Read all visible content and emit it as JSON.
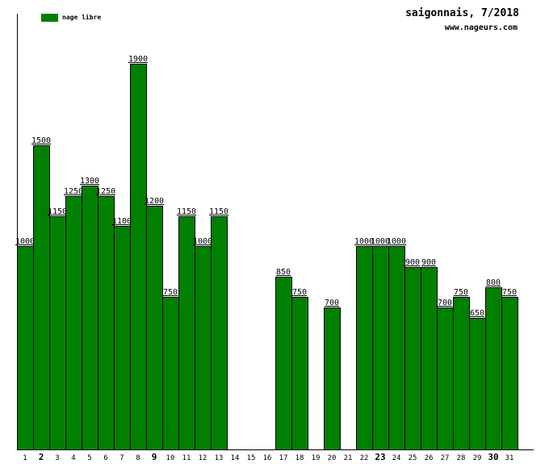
{
  "chart_data": {
    "type": "bar",
    "title": "saigonnais, 7/2018",
    "subtitle": "www.nageurs.com",
    "xlabel": "",
    "ylabel": "",
    "legend": {
      "label": "nage libre",
      "position": "top-left"
    },
    "bar_color": "#008000",
    "grid": false,
    "ylim": [
      0,
      2150
    ],
    "categories": [
      1,
      2,
      3,
      4,
      5,
      6,
      7,
      8,
      9,
      10,
      11,
      12,
      13,
      14,
      15,
      16,
      17,
      18,
      19,
      20,
      21,
      22,
      23,
      24,
      25,
      26,
      27,
      28,
      29,
      30,
      31
    ],
    "values": [
      1000,
      1500,
      1150,
      1250,
      1300,
      1250,
      1100,
      1900,
      1200,
      750,
      1150,
      1000,
      1150,
      null,
      null,
      null,
      850,
      750,
      null,
      700,
      null,
      1000,
      1000,
      1000,
      900,
      900,
      700,
      750,
      650,
      800,
      750
    ],
    "bold_categories": [
      2,
      9,
      23,
      30
    ]
  }
}
